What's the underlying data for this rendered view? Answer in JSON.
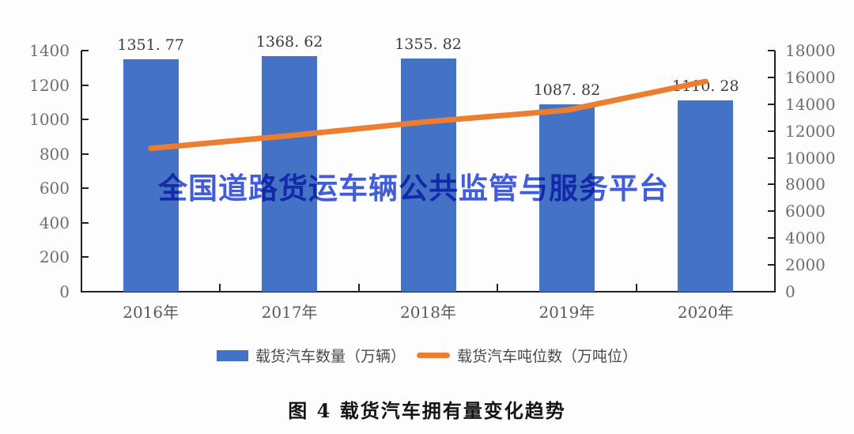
{
  "figure": {
    "watermark": "全国道路货运车辆公共监管与服务平台",
    "watermark_color": "#3150d9",
    "caption": "图 4  载货汽车拥有量变化趋势"
  },
  "chart_data": {
    "type": "bar",
    "subtype": "combo-bar-line-dual-axis",
    "categories": [
      "2016年",
      "2017年",
      "2018年",
      "2019年",
      "2020年"
    ],
    "series": [
      {
        "name": "载货汽车数量（万辆）",
        "type": "bar",
        "axis": "left",
        "color": "#4472C4",
        "values": [
          1351.77,
          1368.62,
          1355.82,
          1087.82,
          1110.28
        ],
        "value_labels": [
          "1351. 77",
          "1368. 62",
          "1355. 82",
          "1087. 82",
          "1110. 28"
        ]
      },
      {
        "name": "载货汽车吨位数（万吨位）",
        "type": "line",
        "axis": "right",
        "color": "#ED7D31",
        "values": [
          10700,
          11650,
          12700,
          13550,
          15700
        ],
        "values_estimated_from_pixels": true
      }
    ],
    "left_axis": {
      "min": 0,
      "max": 1400,
      "step": 200,
      "tick_labels": [
        "0",
        "200",
        "400",
        "600",
        "800",
        "1000",
        "1200",
        "1400"
      ]
    },
    "right_axis": {
      "min": 0,
      "max": 18000,
      "step": 2000,
      "tick_labels": [
        "0",
        "2000",
        "4000",
        "6000",
        "8000",
        "10000",
        "12000",
        "14000",
        "16000",
        "18000"
      ]
    },
    "legend_position": "bottom",
    "grid": false,
    "title": "图 4  载货汽车拥有量变化趋势"
  }
}
